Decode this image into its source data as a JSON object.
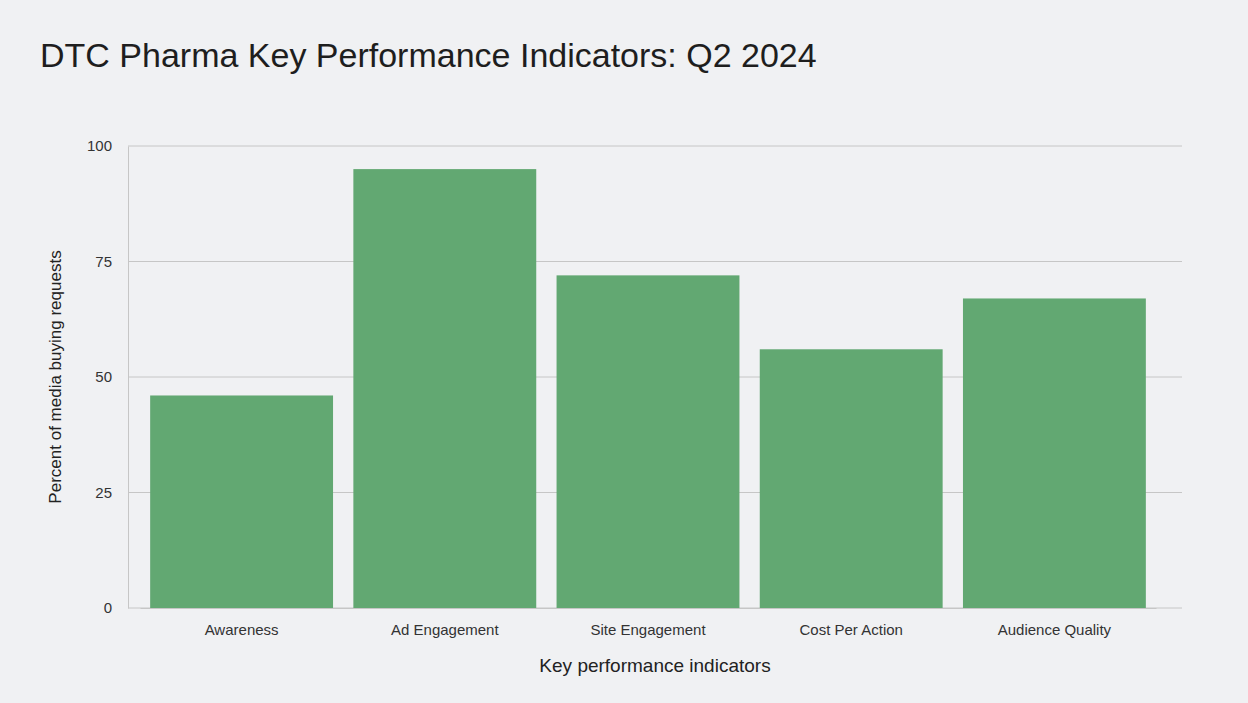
{
  "chart_data": {
    "type": "bar",
    "title": "DTC Pharma Key Performance Indicators: Q2 2024",
    "x_label": "Key performance indicators",
    "y_label": "Percent of media buying requests",
    "categories": [
      "Awareness",
      "Ad Engagement",
      "Site Engagement",
      "Cost Per Action",
      "Audience Quality"
    ],
    "values": [
      46,
      95,
      72,
      56,
      67
    ],
    "color": "#62a872",
    "ylim": [
      0,
      100
    ],
    "yticks": [
      0,
      25,
      50,
      75,
      100
    ],
    "grid": true
  }
}
